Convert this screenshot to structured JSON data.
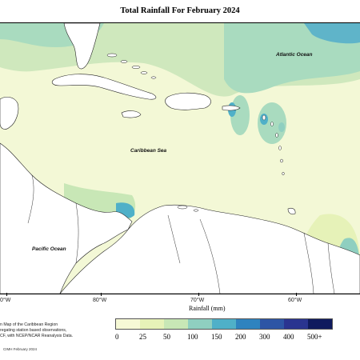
{
  "title": "Total Rainfall For February 2024",
  "labels": {
    "atlantic": "Atlantic Ocean",
    "caribbean": "Caribbean Sea",
    "pacific": "Pacific Ocean"
  },
  "longitudes": [
    "0°W",
    "80°W",
    "70°W",
    "60°W"
  ],
  "axis_title": "Rainfall (mm)",
  "legend": {
    "ticks": [
      "0",
      "25",
      "50",
      "100",
      "150",
      "200",
      "300",
      "400",
      "500+"
    ],
    "colors": [
      "#f6f9d6",
      "#e6f2b8",
      "#c8e7b6",
      "#8fcfc0",
      "#4fb0c8",
      "#2f83bf",
      "#2d55a5",
      "#2a3490",
      "#0f1a5e"
    ]
  },
  "note_lines": [
    "n Map of the Caribbean Region",
    "regating station based observations,",
    "CF, with NCEP/NCAR Reanalysis Data."
  ],
  "footer": "CIMH February 2024"
}
